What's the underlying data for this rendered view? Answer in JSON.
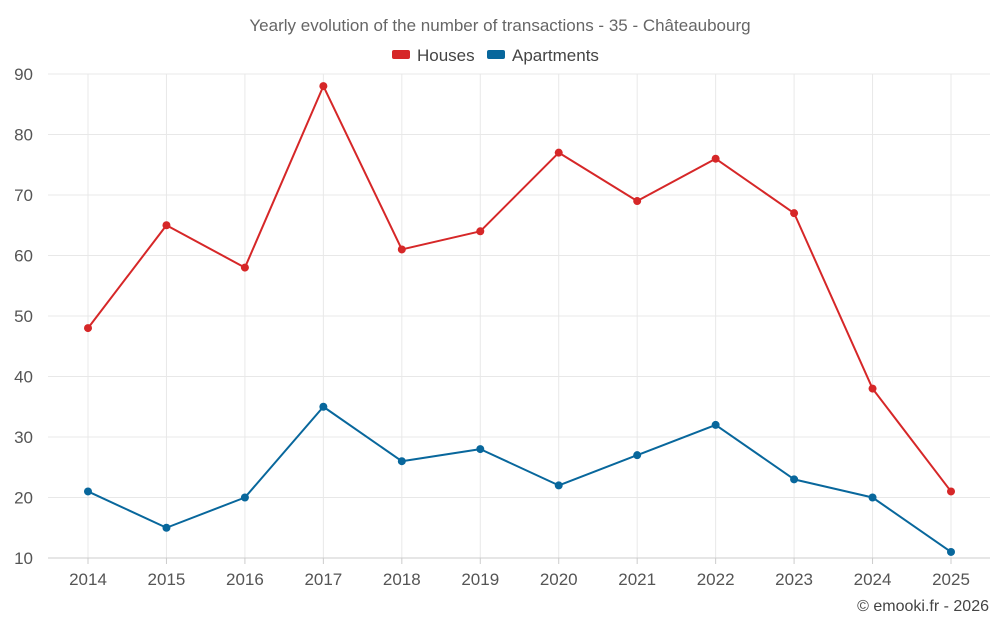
{
  "chart_data": {
    "type": "line",
    "title": "Yearly evolution of the number of transactions - 35 - Châteaubourg",
    "xlabel": "",
    "ylabel": "",
    "categories": [
      "2014",
      "2015",
      "2016",
      "2017",
      "2018",
      "2019",
      "2020",
      "2021",
      "2022",
      "2023",
      "2024",
      "2025"
    ],
    "ylim": [
      10,
      90
    ],
    "yticks": [
      10,
      20,
      30,
      40,
      50,
      60,
      70,
      80,
      90
    ],
    "grid": true,
    "legend_position": "top-center",
    "series": [
      {
        "name": "Houses",
        "color": "#d62728",
        "values": [
          48,
          65,
          58,
          88,
          61,
          64,
          77,
          69,
          76,
          67,
          38,
          21
        ]
      },
      {
        "name": "Apartments",
        "color": "#08679c",
        "values": [
          21,
          15,
          20,
          35,
          26,
          28,
          22,
          27,
          32,
          23,
          20,
          11
        ]
      }
    ]
  },
  "credit": "© emooki.fr - 2026"
}
